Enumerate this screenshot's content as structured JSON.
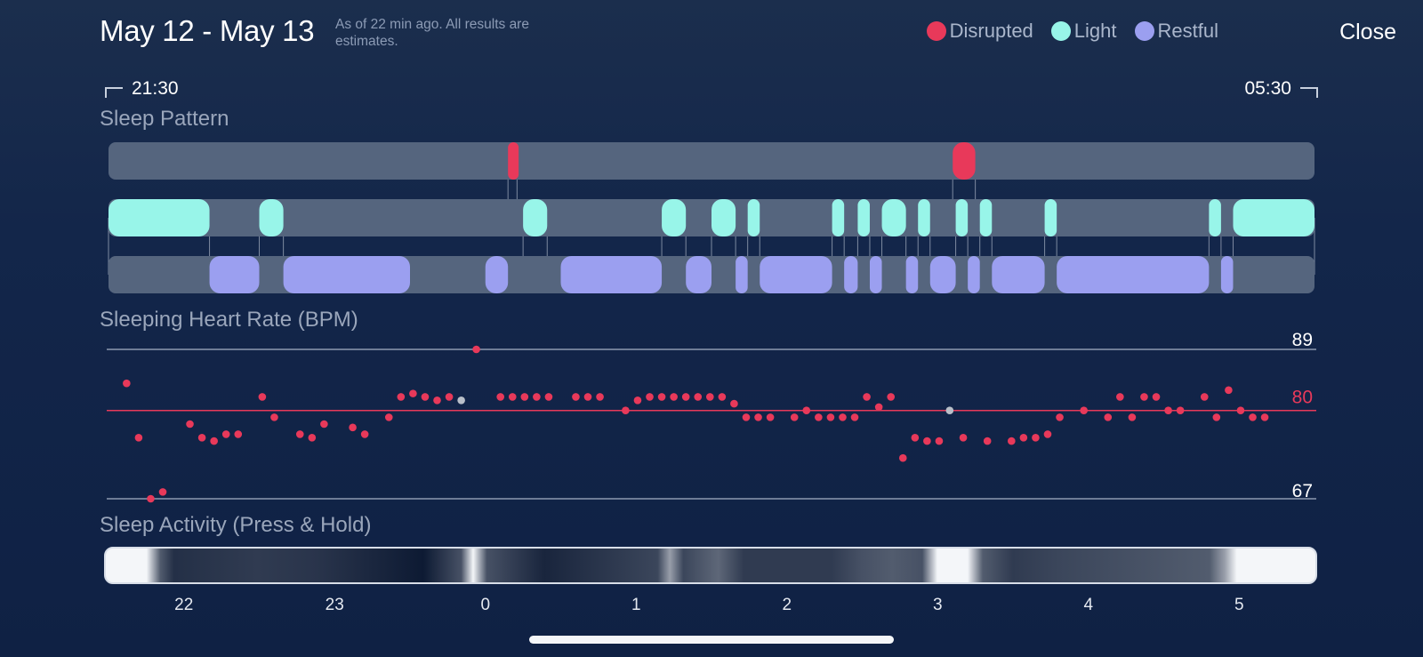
{
  "header": {
    "title": "May 12 - May 13",
    "subtitle": "As of 22 min ago. All results are estimates.",
    "close_label": "Close"
  },
  "legend": [
    {
      "label": "Disrupted",
      "color": "#e8395a"
    },
    {
      "label": "Light",
      "color": "#98f5e9"
    },
    {
      "label": "Restful",
      "color": "#9b9ff0"
    }
  ],
  "timeline": {
    "start": "21:30",
    "end": "05:30"
  },
  "sleep_pattern": {
    "title": "Sleep Pattern",
    "colors": {
      "track": "#55657e",
      "disrupted": "#e8395a",
      "light": "#98f5e9",
      "restful": "#9b9ff0"
    },
    "range_hours": [
      21.5,
      29.5
    ],
    "disrupted": [
      [
        24.15,
        24.21
      ],
      [
        27.1,
        27.25
      ]
    ],
    "light": [
      [
        21.5,
        22.17
      ],
      [
        22.5,
        22.66
      ],
      [
        24.25,
        24.41
      ],
      [
        25.17,
        25.33
      ],
      [
        25.5,
        25.66
      ],
      [
        25.74,
        25.82
      ],
      [
        26.3,
        26.38
      ],
      [
        26.47,
        26.55
      ],
      [
        26.63,
        26.79
      ],
      [
        26.87,
        26.95
      ],
      [
        27.12,
        27.2
      ],
      [
        27.28,
        27.36
      ],
      [
        27.71,
        27.79
      ],
      [
        28.8,
        28.88
      ],
      [
        28.96,
        29.5
      ]
    ],
    "restful": [
      [
        22.17,
        22.5
      ],
      [
        22.66,
        23.5
      ],
      [
        24.0,
        24.15
      ],
      [
        24.5,
        25.17
      ],
      [
        25.33,
        25.5
      ],
      [
        25.66,
        25.74
      ],
      [
        25.82,
        26.3
      ],
      [
        26.38,
        26.47
      ],
      [
        26.55,
        26.63
      ],
      [
        26.79,
        26.87
      ],
      [
        26.95,
        27.12
      ],
      [
        27.2,
        27.28
      ],
      [
        27.36,
        27.71
      ],
      [
        27.79,
        28.8
      ],
      [
        28.88,
        28.96
      ]
    ]
  },
  "heart_rate": {
    "title": "Sleeping Heart Rate (BPM)",
    "max_label": "89",
    "avg_label": "80",
    "min_label": "67",
    "max": 89,
    "avg": 80,
    "min": 67,
    "colors": {
      "point": "#e8395a",
      "gap": "#b9bfc9",
      "avg_line": "#e8395a",
      "grid": "#8e9ab0"
    },
    "points": [
      {
        "t": 21.62,
        "v": 84
      },
      {
        "t": 21.7,
        "v": 76
      },
      {
        "t": 21.78,
        "v": 67
      },
      {
        "t": 21.86,
        "v": 68
      },
      {
        "t": 22.04,
        "v": 78
      },
      {
        "t": 22.12,
        "v": 76
      },
      {
        "t": 22.2,
        "v": 75.5
      },
      {
        "t": 22.28,
        "v": 76.5
      },
      {
        "t": 22.36,
        "v": 76.5
      },
      {
        "t": 22.52,
        "v": 82
      },
      {
        "t": 22.6,
        "v": 79
      },
      {
        "t": 22.77,
        "v": 76.5
      },
      {
        "t": 22.85,
        "v": 76
      },
      {
        "t": 22.93,
        "v": 78
      },
      {
        "t": 23.12,
        "v": 77.5
      },
      {
        "t": 23.2,
        "v": 76.5
      },
      {
        "t": 23.36,
        "v": 79
      },
      {
        "t": 23.44,
        "v": 82
      },
      {
        "t": 23.52,
        "v": 82.5
      },
      {
        "t": 23.6,
        "v": 82
      },
      {
        "t": 23.68,
        "v": 81.5
      },
      {
        "t": 23.76,
        "v": 82
      },
      {
        "t": 23.84,
        "v": 81.5,
        "gap": true
      },
      {
        "t": 23.94,
        "v": 89
      },
      {
        "t": 24.1,
        "v": 82
      },
      {
        "t": 24.18,
        "v": 82
      },
      {
        "t": 24.26,
        "v": 82
      },
      {
        "t": 24.34,
        "v": 82
      },
      {
        "t": 24.42,
        "v": 82
      },
      {
        "t": 24.6,
        "v": 82
      },
      {
        "t": 24.68,
        "v": 82
      },
      {
        "t": 24.76,
        "v": 82
      },
      {
        "t": 24.93,
        "v": 80
      },
      {
        "t": 25.01,
        "v": 81.5
      },
      {
        "t": 25.09,
        "v": 82
      },
      {
        "t": 25.17,
        "v": 82
      },
      {
        "t": 25.25,
        "v": 82
      },
      {
        "t": 25.33,
        "v": 82
      },
      {
        "t": 25.41,
        "v": 82
      },
      {
        "t": 25.49,
        "v": 82
      },
      {
        "t": 25.57,
        "v": 82
      },
      {
        "t": 25.65,
        "v": 81
      },
      {
        "t": 25.73,
        "v": 79
      },
      {
        "t": 25.81,
        "v": 79
      },
      {
        "t": 25.89,
        "v": 79
      },
      {
        "t": 26.05,
        "v": 79
      },
      {
        "t": 26.13,
        "v": 80
      },
      {
        "t": 26.21,
        "v": 79
      },
      {
        "t": 26.29,
        "v": 79
      },
      {
        "t": 26.37,
        "v": 79
      },
      {
        "t": 26.45,
        "v": 79
      },
      {
        "t": 26.53,
        "v": 82
      },
      {
        "t": 26.61,
        "v": 80.5
      },
      {
        "t": 26.69,
        "v": 82
      },
      {
        "t": 26.77,
        "v": 73
      },
      {
        "t": 26.85,
        "v": 76
      },
      {
        "t": 26.93,
        "v": 75.5
      },
      {
        "t": 27.01,
        "v": 75.5
      },
      {
        "t": 27.08,
        "v": 80,
        "gap": true
      },
      {
        "t": 27.17,
        "v": 76
      },
      {
        "t": 27.33,
        "v": 75.5
      },
      {
        "t": 27.49,
        "v": 75.5
      },
      {
        "t": 27.57,
        "v": 76
      },
      {
        "t": 27.65,
        "v": 76
      },
      {
        "t": 27.73,
        "v": 76.5
      },
      {
        "t": 27.81,
        "v": 79
      },
      {
        "t": 27.97,
        "v": 80
      },
      {
        "t": 28.13,
        "v": 79
      },
      {
        "t": 28.21,
        "v": 82
      },
      {
        "t": 28.29,
        "v": 79
      },
      {
        "t": 28.37,
        "v": 82
      },
      {
        "t": 28.45,
        "v": 82
      },
      {
        "t": 28.53,
        "v": 80
      },
      {
        "t": 28.61,
        "v": 80
      },
      {
        "t": 28.77,
        "v": 82
      },
      {
        "t": 28.85,
        "v": 79
      },
      {
        "t": 28.93,
        "v": 83
      },
      {
        "t": 29.01,
        "v": 80
      },
      {
        "t": 29.09,
        "v": 79
      },
      {
        "t": 29.17,
        "v": 79
      }
    ]
  },
  "sleep_activity": {
    "title": "Sleep Activity (Press & Hold)",
    "colors": {
      "high": "#f4f6f9",
      "low": "#0d1a33"
    },
    "bands": [
      {
        "t": 21.5,
        "v": 1.0
      },
      {
        "t": 21.77,
        "v": 1.0
      },
      {
        "t": 21.86,
        "v": 0.3
      },
      {
        "t": 21.95,
        "v": 0.1
      },
      {
        "t": 22.5,
        "v": 0.15
      },
      {
        "t": 22.9,
        "v": 0.12
      },
      {
        "t": 23.6,
        "v": 0.0
      },
      {
        "t": 23.85,
        "v": 0.25
      },
      {
        "t": 23.93,
        "v": 1.0
      },
      {
        "t": 24.02,
        "v": 0.25
      },
      {
        "t": 24.4,
        "v": 0.05
      },
      {
        "t": 25.15,
        "v": 0.2
      },
      {
        "t": 25.23,
        "v": 0.6
      },
      {
        "t": 25.32,
        "v": 0.2
      },
      {
        "t": 25.55,
        "v": 0.35
      },
      {
        "t": 25.72,
        "v": 0.15
      },
      {
        "t": 26.3,
        "v": 0.15
      },
      {
        "t": 26.5,
        "v": 0.25
      },
      {
        "t": 26.7,
        "v": 0.3
      },
      {
        "t": 26.9,
        "v": 0.25
      },
      {
        "t": 27.0,
        "v": 1.0
      },
      {
        "t": 27.2,
        "v": 1.0
      },
      {
        "t": 27.3,
        "v": 0.3
      },
      {
        "t": 27.5,
        "v": 0.15
      },
      {
        "t": 27.8,
        "v": 0.2
      },
      {
        "t": 28.8,
        "v": 0.3
      },
      {
        "t": 28.9,
        "v": 0.6
      },
      {
        "t": 28.98,
        "v": 1.0
      },
      {
        "t": 29.5,
        "v": 1.0
      }
    ]
  },
  "x_axis": {
    "ticks": [
      {
        "label": "22",
        "t": 22.0
      },
      {
        "label": "23",
        "t": 23.0
      },
      {
        "label": "0",
        "t": 24.0
      },
      {
        "label": "1",
        "t": 25.0
      },
      {
        "label": "2",
        "t": 26.0
      },
      {
        "label": "3",
        "t": 27.0
      },
      {
        "label": "4",
        "t": 28.0
      },
      {
        "label": "5",
        "t": 29.0
      }
    ]
  }
}
